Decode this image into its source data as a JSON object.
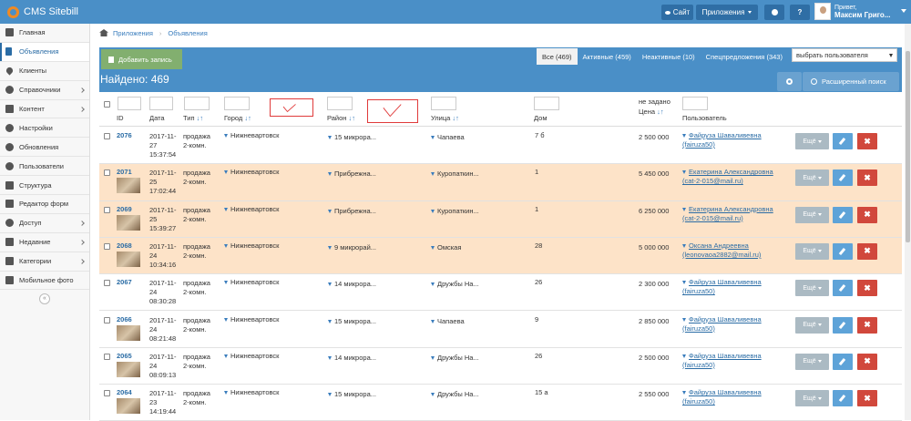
{
  "navbar": {
    "brand": "CMS Sitebill",
    "site_label": "Сайт",
    "apps_label": "Приложения",
    "user_greeting": "Привет,",
    "user_name": "Максим Григо..."
  },
  "sidebar": {
    "items": [
      {
        "label": "Главная",
        "icon": "home-icon",
        "arrow": false,
        "active": false
      },
      {
        "label": "Объявления",
        "icon": "list-icon",
        "arrow": false,
        "active": true
      },
      {
        "label": "Клиенты",
        "icon": "heart-icon",
        "arrow": false,
        "active": false
      },
      {
        "label": "Справочники",
        "icon": "globe-icon",
        "arrow": true,
        "active": false
      },
      {
        "label": "Контент",
        "icon": "pencil-icon",
        "arrow": true,
        "active": false
      },
      {
        "label": "Настройки",
        "icon": "gear-icon",
        "arrow": false,
        "active": false
      },
      {
        "label": "Обновления",
        "icon": "refresh-icon",
        "arrow": false,
        "active": false
      },
      {
        "label": "Пользователи",
        "icon": "user-icon",
        "arrow": false,
        "active": false
      },
      {
        "label": "Структура",
        "icon": "structure-icon",
        "arrow": false,
        "active": false
      },
      {
        "label": "Редактор форм",
        "icon": "edit-form-icon",
        "arrow": false,
        "active": false
      },
      {
        "label": "Доступ",
        "icon": "group-icon",
        "arrow": true,
        "active": false
      },
      {
        "label": "Недавние",
        "icon": "monitor-icon",
        "arrow": true,
        "active": false
      },
      {
        "label": "Категории",
        "icon": "folder-icon",
        "arrow": true,
        "active": false
      },
      {
        "label": "Мобильное фото",
        "icon": "camera-icon",
        "arrow": false,
        "active": false
      }
    ],
    "collapse_glyph": "«"
  },
  "breadcrumb": {
    "items": [
      "Приложения",
      "Объявления"
    ],
    "sep": "›"
  },
  "toolbar": {
    "add_label": "Добавить запись",
    "filters": [
      {
        "label": "Все (469)",
        "active": true
      },
      {
        "label": "Активные (459)",
        "active": false
      },
      {
        "label": "Неактивные (10)",
        "active": false
      },
      {
        "label": "Спецпредложения (343)",
        "active": false
      }
    ],
    "user_select": "выбрать пользователя",
    "found": "Найдено: 469",
    "adv_search": "Расширенный поиск"
  },
  "columns": {
    "id": "ID",
    "date": "Дата",
    "type": "Тип",
    "city": "Город",
    "district": "Район",
    "street": "Улица",
    "house": "Дом",
    "price_top": "не задано",
    "price": "Цена",
    "user": "Пользователь",
    "sort_arrows": "↓↑"
  },
  "row_more_label": "Ещё",
  "row_delete_glyph": "✖",
  "rows": [
    {
      "id": "2076",
      "date": [
        "2017-11-",
        "27",
        "15:37:54"
      ],
      "type": [
        "продажа",
        "2-комн."
      ],
      "city": "Нижневартовск",
      "district": "15 микрора...",
      "street": "Чапаева",
      "house": "7 б",
      "price": "2 500 000",
      "user": [
        "Файруза Шаваливевна",
        "(fairuza50)"
      ],
      "thumb": false,
      "highlight": false
    },
    {
      "id": "2071",
      "date": [
        "2017-11-",
        "25",
        "17:02:44"
      ],
      "type": [
        "продажа",
        "2-комн."
      ],
      "city": "Нижневартовск",
      "district": "Прибрежна...",
      "street": "Куропаткин...",
      "house": "1",
      "price": "5 450 000",
      "user": [
        "Екатерина Александровна",
        "(cat-2-015@mail.ru)"
      ],
      "thumb": true,
      "highlight": true
    },
    {
      "id": "2069",
      "date": [
        "2017-11-",
        "25",
        "15:39:27"
      ],
      "type": [
        "продажа",
        "2-комн."
      ],
      "city": "Нижневартовск",
      "district": "Прибрежна...",
      "street": "Куропаткин...",
      "house": "1",
      "price": "6 250 000",
      "user": [
        "Екатерина Александровна",
        "(cat-2-015@mail.ru)"
      ],
      "thumb": true,
      "highlight": true
    },
    {
      "id": "2068",
      "date": [
        "2017-11-",
        "24",
        "10:34:16"
      ],
      "type": [
        "продажа",
        "2-комн."
      ],
      "city": "Нижневартовск",
      "district": "9 микрорай...",
      "street": "Омская",
      "house": "28",
      "price": "5 000 000",
      "user": [
        "Оксана Андреевна",
        "(leonovaoa2882@mail.ru)"
      ],
      "thumb": true,
      "highlight": true
    },
    {
      "id": "2067",
      "date": [
        "2017-11-",
        "24",
        "08:30:28"
      ],
      "type": [
        "продажа",
        "2-комн."
      ],
      "city": "Нижневартовск",
      "district": "14 микрора...",
      "street": "Дружбы На...",
      "house": "26",
      "price": "2 300 000",
      "user": [
        "Файруза Шаваливевна",
        "(fairuza50)"
      ],
      "thumb": false,
      "highlight": false
    },
    {
      "id": "2066",
      "date": [
        "2017-11-",
        "24",
        "08:21:48"
      ],
      "type": [
        "продажа",
        "2-комн."
      ],
      "city": "Нижневартовск",
      "district": "15 микрора...",
      "street": "Чапаева",
      "house": "9",
      "price": "2 850 000",
      "user": [
        "Файруза Шаваливевна",
        "(fairuza50)"
      ],
      "thumb": true,
      "highlight": false
    },
    {
      "id": "2065",
      "date": [
        "2017-11-",
        "24",
        "08:09:13"
      ],
      "type": [
        "продажа",
        "2-комн."
      ],
      "city": "Нижневартовск",
      "district": "14 микрора...",
      "street": "Дружбы На...",
      "house": "26",
      "price": "2 500 000",
      "user": [
        "Файруза Шаваливевна",
        "(fairuza50)"
      ],
      "thumb": true,
      "highlight": false
    },
    {
      "id": "2064",
      "date": [
        "2017-11-",
        "23",
        "14:19:44"
      ],
      "type": [
        "продажа",
        "2-комн."
      ],
      "city": "Нижневартовск",
      "district": "15 микрора...",
      "street": "Дружбы На...",
      "house": "15 а",
      "price": "2 550 000",
      "user": [
        "Файруза Шаваливевна",
        "(fairuza50)"
      ],
      "thumb": true,
      "highlight": false
    }
  ]
}
